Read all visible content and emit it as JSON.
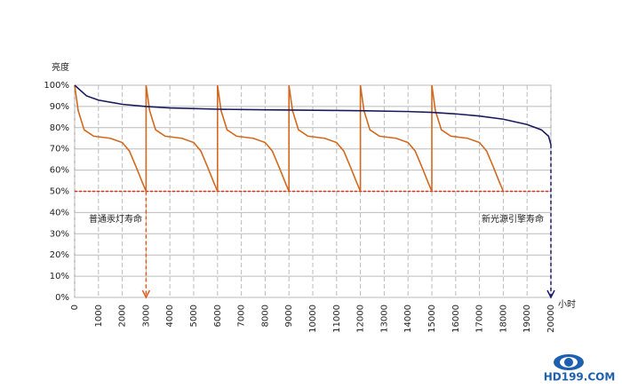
{
  "chart_data": {
    "type": "line",
    "y_label": "亮度",
    "x_label": "小时",
    "xlim": [
      0,
      20000
    ],
    "xticks": [
      0,
      1000,
      2000,
      3000,
      4000,
      5000,
      6000,
      7000,
      8000,
      9000,
      10000,
      11000,
      12000,
      13000,
      14000,
      15000,
      16000,
      17000,
      18000,
      19000,
      20000
    ],
    "ylim": [
      0,
      100
    ],
    "yticks": [
      {
        "value": 0,
        "label": "0%"
      },
      {
        "value": 10,
        "label": "10%"
      },
      {
        "value": 20,
        "label": "20%"
      },
      {
        "value": 30,
        "label": "30%"
      },
      {
        "value": 40,
        "label": "40%"
      },
      {
        "value": 50,
        "label": "50%"
      },
      {
        "value": 60,
        "label": "60%"
      },
      {
        "value": 70,
        "label": "70%"
      },
      {
        "value": 80,
        "label": "80%"
      },
      {
        "value": 90,
        "label": "90%"
      },
      {
        "value": 100,
        "label": "100%"
      }
    ],
    "grid": true,
    "series": [
      {
        "color": "#d2691e",
        "x": [
          0,
          150,
          400,
          800,
          1500,
          2000,
          2300,
          2600,
          2850,
          3000,
          3000,
          3150,
          3400,
          3800,
          4500,
          5000,
          5300,
          5600,
          5850,
          6000,
          6000,
          6150,
          6400,
          6800,
          7500,
          8000,
          8300,
          8600,
          8850,
          9000,
          9000,
          9150,
          9400,
          9800,
          10500,
          11000,
          11300,
          11600,
          11850,
          12000,
          12000,
          12150,
          12400,
          12800,
          13500,
          14000,
          14300,
          14600,
          14850,
          15000,
          15000,
          15150,
          15400,
          15800,
          16500,
          17000,
          17300,
          17600,
          17850,
          18000
        ],
        "values": [
          100,
          88,
          79,
          76,
          75,
          73,
          69,
          61,
          54,
          50,
          100,
          88,
          79,
          76,
          75,
          73,
          69,
          61,
          54,
          50,
          100,
          88,
          79,
          76,
          75,
          73,
          69,
          61,
          54,
          50,
          100,
          88,
          79,
          76,
          75,
          73,
          69,
          61,
          54,
          50,
          100,
          88,
          79,
          76,
          75,
          73,
          69,
          61,
          54,
          50,
          100,
          88,
          79,
          76,
          75,
          73,
          69,
          61,
          54,
          50
        ]
      },
      {
        "color": "#1a1a5e",
        "x": [
          0,
          500,
          1000,
          2000,
          3000,
          4000,
          6000,
          8000,
          10000,
          12000,
          14000,
          15000,
          16000,
          17000,
          18000,
          19000,
          19600,
          19900,
          20000
        ],
        "values": [
          100,
          95,
          93,
          91,
          90,
          89.3,
          88.7,
          88.4,
          88.2,
          88,
          87.6,
          87.2,
          86.5,
          85.5,
          84,
          81.5,
          79,
          76,
          72
        ]
      }
    ],
    "hline": {
      "value": 50,
      "color": "#e03020"
    },
    "vlines": [
      {
        "x": 3000,
        "from": 50,
        "color": "#e05a20"
      },
      {
        "x": 20000,
        "from": 72,
        "color": "#1a1a6a"
      }
    ],
    "annotations": [
      "普通汞灯寿命",
      "新光源引擎寿命"
    ],
    "watermark": "HD199.COM"
  }
}
